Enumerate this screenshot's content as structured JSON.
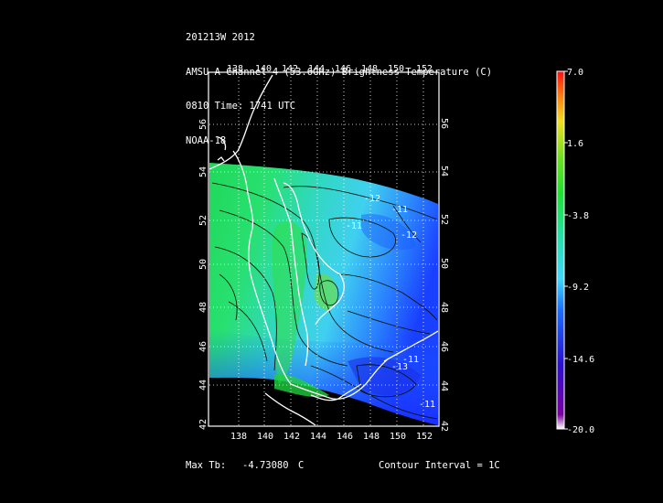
{
  "header": {
    "line1": "201213W 2012",
    "line2": "AMSU-A Channel 4 (53.6GHz) Brightness Temperature (C)",
    "line3": "0810 Time: 1741 UTC",
    "line4": "NOAA-18"
  },
  "map": {
    "lon_ticks": [
      "138",
      "140",
      "142",
      "144",
      "146",
      "148",
      "150",
      "152"
    ],
    "lat_ticks": [
      "42",
      "44",
      "46",
      "48",
      "50",
      "52",
      "54",
      "56"
    ],
    "contour_labels": [
      "-12",
      "-11",
      "-11",
      "-12",
      "-11",
      "-13",
      "-11"
    ],
    "colors": {
      "background": "#000000",
      "coastline": "#ffffff",
      "grid": "#ffffff",
      "warm_green": "#22e040",
      "mid_cyan": "#40e0f0",
      "cold_blue": "#1a3cff"
    }
  },
  "colorbar": {
    "labels": [
      "7.0",
      "1.6",
      "-3.8",
      "-9.2",
      "-14.6",
      "-20.0"
    ],
    "min": -20.0,
    "max": 7.0
  },
  "footer": {
    "max_tb_label": "Max Tb:",
    "max_tb_value": "-4.73080",
    "max_tb_unit": "C",
    "contour_interval": "Contour Interval = 1C"
  }
}
